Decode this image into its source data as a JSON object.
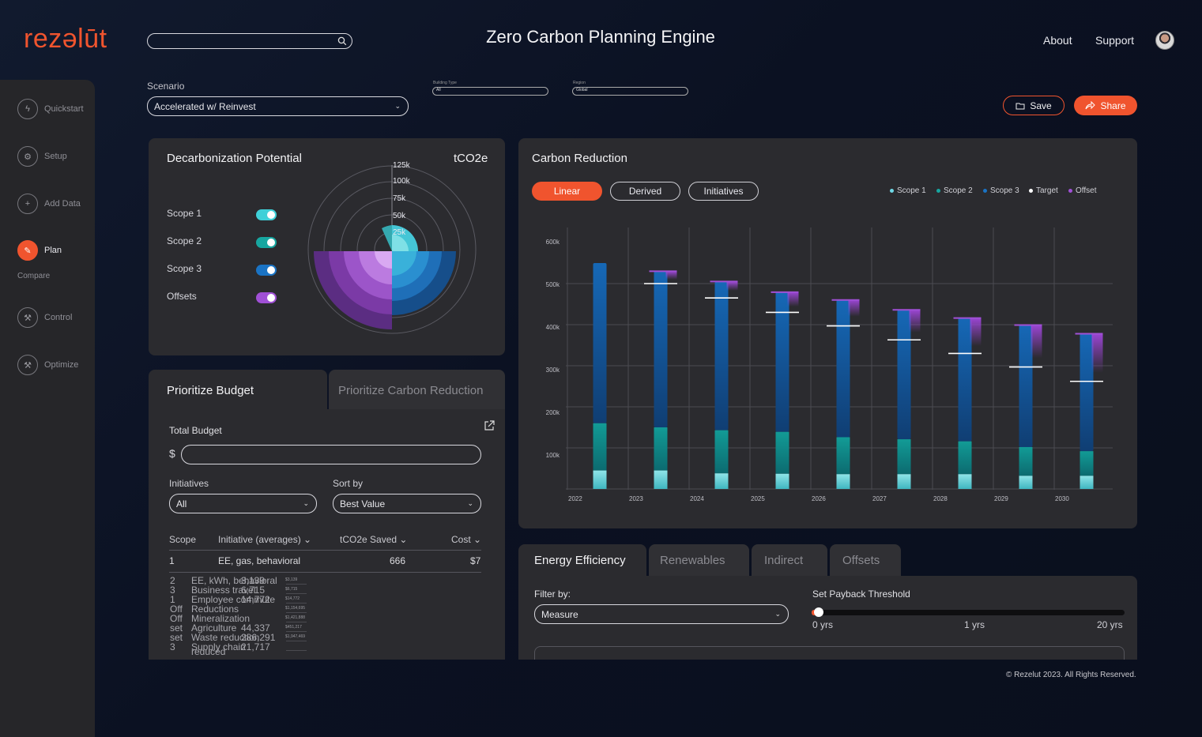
{
  "header": {
    "logo": "rezəlūt",
    "title": "Zero Carbon Planning Engine",
    "search_placeholder": "",
    "links": [
      "About",
      "Support"
    ]
  },
  "sidebar": {
    "items": [
      {
        "label": "Quickstart",
        "icon": "lightning-icon"
      },
      {
        "label": "Setup",
        "icon": "gear-icon"
      },
      {
        "label": "Add Data",
        "icon": "plus-icon"
      },
      {
        "label": "Plan",
        "icon": "pencil-icon",
        "active": true
      },
      {
        "label": "Control",
        "icon": "wand-icon"
      },
      {
        "label": "Optimize",
        "icon": "wand-icon"
      }
    ],
    "sub_item": "Compare"
  },
  "filters": {
    "scenario_label": "Scenario",
    "scenario_value": "Accelerated w/ Reinvest",
    "building_type_label": "Building Type",
    "building_type_value": "All",
    "region_label": "Region",
    "region_value": "Global",
    "save_label": "Save",
    "share_label": "Share"
  },
  "decarb": {
    "title": "Decarbonization Potential",
    "unit": "tCO2e",
    "scopes": [
      {
        "label": "Scope 1",
        "color": "#3fd0d8",
        "on": true
      },
      {
        "label": "Scope 2",
        "color": "#17a6a0",
        "on": true
      },
      {
        "label": "Scope 3",
        "color": "#1a73c4",
        "on": true
      },
      {
        "label": "Offsets",
        "color": "#a050d6",
        "on": true
      }
    ],
    "ring_labels": [
      "125k",
      "100k",
      "75k",
      "50k",
      "25k"
    ]
  },
  "carbon_reduction": {
    "title": "Carbon Reduction",
    "modes": [
      "Linear",
      "Derived",
      "Initiatives"
    ],
    "active_mode": "Linear",
    "legend": [
      {
        "label": "Scope 1",
        "color": "#6fd8e6"
      },
      {
        "label": "Scope 2",
        "color": "#17a6a0"
      },
      {
        "label": "Scope 3",
        "color": "#1a73c4"
      },
      {
        "label": "Target",
        "color": "#ffffff"
      },
      {
        "label": "Offset",
        "color": "#a050d6"
      }
    ]
  },
  "chart_data": {
    "type": "bar",
    "categories": [
      "2022",
      "2023",
      "2024",
      "2025",
      "2026",
      "2027",
      "2028",
      "2029",
      "2030"
    ],
    "ylim": [
      0,
      600000
    ],
    "yticks": [
      "100k",
      "200k",
      "300k",
      "400k",
      "500k",
      "600k"
    ],
    "series": [
      {
        "name": "Scope 1",
        "values": [
          45000,
          45000,
          38000,
          37000,
          36000,
          36000,
          36000,
          32000,
          32000
        ]
      },
      {
        "name": "Scope 2",
        "values": [
          115000,
          105000,
          105000,
          102000,
          90000,
          85000,
          80000,
          70000,
          60000
        ]
      },
      {
        "name": "Scope 3",
        "values": [
          390000,
          380000,
          362000,
          340000,
          334000,
          315000,
          300000,
          297000,
          286000
        ]
      },
      {
        "name": "Offset",
        "values": [
          0,
          20000,
          22000,
          35000,
          40000,
          55000,
          68000,
          80000,
          95000
        ]
      }
    ],
    "target": [
      null,
      500000,
      465000,
      430000,
      397000,
      363000,
      330000,
      297000,
      262000
    ]
  },
  "budget": {
    "tab_active": "Prioritize Budget",
    "tab_inactive": "Prioritize Carbon Reduction",
    "total_budget_label": "Total Budget",
    "currency": "$",
    "initiatives_label": "Initiatives",
    "initiatives_value": "All",
    "sort_label": "Sort by",
    "sort_value": "Best Value",
    "columns": [
      "Scope",
      "Initiative (averages)",
      "tCO2e Saved",
      "Cost"
    ],
    "first_row": {
      "scope": "1",
      "initiative": "EE, gas, behavioral",
      "saved": "666",
      "cost": "$7"
    },
    "overlap_rows": [
      {
        "scope": "2",
        "initiative": "EE, kWh, behavioral",
        "saved": "3,139",
        "cost": "$3,139"
      },
      {
        "scope": "3",
        "initiative": "Business travel",
        "saved": "6,715",
        "cost": "$6,715"
      },
      {
        "scope": "1",
        "initiative": "Employee commute",
        "saved": "14,772",
        "cost": "$14,772"
      },
      {
        "scope": "Off",
        "initiative": "Reductions",
        "saved": "",
        "cost": "$1,154,695"
      },
      {
        "scope": "Off",
        "initiative": "Mineralization",
        "saved": "",
        "cost": "$1,421,888"
      },
      {
        "scope": "set",
        "initiative": "Agriculture",
        "saved": "44,337",
        "cost": "$451,217"
      },
      {
        "scope": "set",
        "initiative": "Waste reduction",
        "saved": "286,291",
        "cost": "$1,947,469"
      },
      {
        "scope": "3",
        "initiative": "Supply chain",
        "saved": "21,717",
        "cost": ""
      }
    ],
    "trailing_text": "reduced"
  },
  "energy": {
    "tabs": [
      "Energy Efficiency",
      "Renewables",
      "Indirect",
      "Offsets"
    ],
    "filter_label": "Filter by:",
    "filter_value": "Measure",
    "threshold_label": "Set Payback Threshold",
    "slider_min": "0 yrs",
    "slider_mid": "1 yrs",
    "slider_max": "20 yrs",
    "slider_value": 0
  },
  "footer": "© Rezelut 2023. All Rights Reserved."
}
